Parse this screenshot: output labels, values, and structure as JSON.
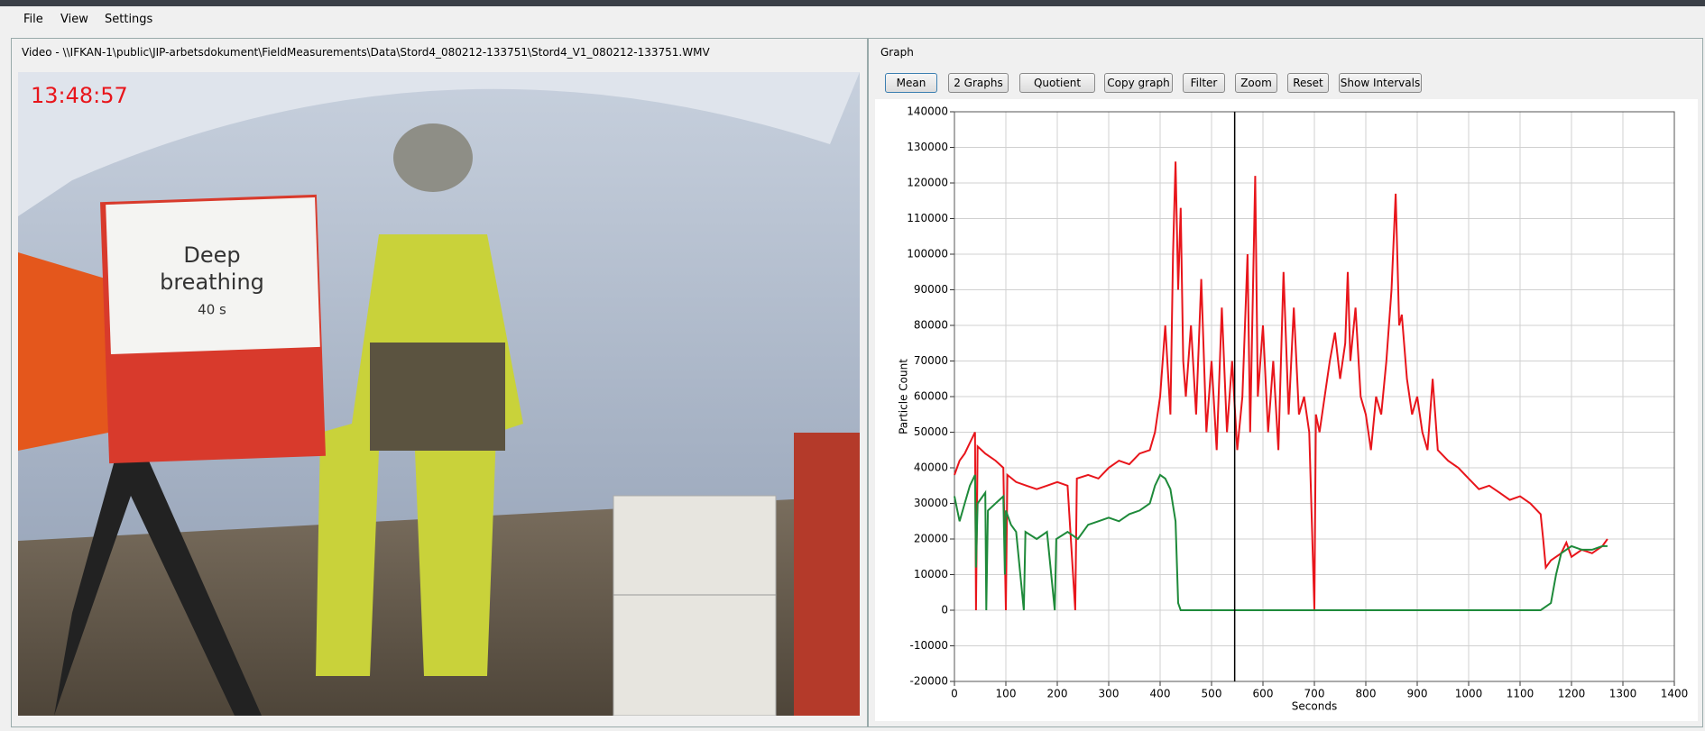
{
  "menu": {
    "items": [
      "File",
      "View",
      "Settings"
    ]
  },
  "video_panel": {
    "title": "Video - \\\\IFKAN-1\\public\\JIP-arbetsdokument\\FieldMeasurements\\Data\\Stord4_080212-133751\\Stord4_V1_080212-133751.WMV",
    "timestamp": "13:48:57",
    "sign": [
      "Deep",
      "breathing",
      "40 s"
    ]
  },
  "graph_panel": {
    "title": "Graph",
    "buttons": [
      "Mean",
      "2 Graphs",
      "Quotient",
      "Copy graph",
      "Filter",
      "Zoom",
      "Reset",
      "Show Intervals"
    ]
  },
  "chart_data": {
    "type": "line",
    "x_label": "Seconds",
    "y_label": "Particle Count",
    "xlim": [
      0,
      1400
    ],
    "ylim": [
      -20000,
      140000
    ],
    "xticks": [
      0,
      100,
      200,
      300,
      400,
      500,
      600,
      700,
      800,
      900,
      1000,
      1100,
      1200,
      1300,
      1400
    ],
    "yticks": [
      -20000,
      -10000,
      0,
      10000,
      20000,
      30000,
      40000,
      50000,
      60000,
      70000,
      80000,
      90000,
      100000,
      110000,
      120000,
      130000,
      140000
    ],
    "grid": true,
    "cursor_x": 545,
    "series": [
      {
        "color": "#e8151b",
        "x": [
          0,
          10,
          20,
          30,
          40,
          42,
          45,
          60,
          80,
          95,
          100,
          103,
          120,
          140,
          160,
          180,
          200,
          220,
          235,
          238,
          260,
          280,
          300,
          320,
          340,
          360,
          380,
          390,
          400,
          410,
          420,
          425,
          430,
          435,
          440,
          445,
          450,
          460,
          470,
          480,
          490,
          500,
          510,
          520,
          530,
          540,
          550,
          560,
          570,
          575,
          585,
          590,
          600,
          610,
          620,
          630,
          640,
          650,
          660,
          670,
          680,
          690,
          700,
          703,
          710,
          720,
          730,
          740,
          750,
          760,
          765,
          770,
          780,
          790,
          800,
          810,
          820,
          830,
          840,
          850,
          858,
          865,
          870,
          880,
          890,
          900,
          910,
          920,
          930,
          940,
          960,
          980,
          1000,
          1020,
          1040,
          1060,
          1080,
          1100,
          1120,
          1140,
          1145,
          1150,
          1160,
          1180,
          1190,
          1200,
          1220,
          1240,
          1260,
          1270
        ],
        "values": [
          38000,
          42000,
          44000,
          47000,
          50000,
          0,
          46000,
          44000,
          42000,
          40000,
          0,
          38000,
          36000,
          35000,
          34000,
          35000,
          36000,
          35000,
          0,
          37000,
          38000,
          37000,
          40000,
          42000,
          41000,
          44000,
          45000,
          50000,
          60000,
          80000,
          55000,
          100000,
          126000,
          90000,
          113000,
          70000,
          60000,
          80000,
          55000,
          93000,
          50000,
          70000,
          45000,
          85000,
          50000,
          70000,
          45000,
          60000,
          100000,
          50000,
          122000,
          60000,
          80000,
          50000,
          70000,
          45000,
          95000,
          55000,
          85000,
          55000,
          60000,
          50000,
          0,
          55000,
          50000,
          60000,
          70000,
          78000,
          65000,
          75000,
          95000,
          70000,
          85000,
          60000,
          55000,
          45000,
          60000,
          55000,
          70000,
          90000,
          117000,
          80000,
          83000,
          65000,
          55000,
          60000,
          50000,
          45000,
          65000,
          45000,
          42000,
          40000,
          37000,
          34000,
          35000,
          33000,
          31000,
          32000,
          30000,
          27000,
          20000,
          12000,
          14000,
          16000,
          19000,
          15000,
          17000,
          16000,
          18000,
          20000
        ]
      },
      {
        "color": "#1e8a3a",
        "x": [
          0,
          10,
          20,
          30,
          40,
          42,
          45,
          60,
          62,
          65,
          80,
          95,
          98,
          100,
          110,
          120,
          135,
          138,
          160,
          180,
          195,
          198,
          220,
          240,
          260,
          280,
          300,
          320,
          340,
          360,
          380,
          390,
          400,
          410,
          420,
          430,
          435,
          440,
          500,
          600,
          700,
          800,
          900,
          1000,
          1100,
          1140,
          1160,
          1170,
          1180,
          1200,
          1220,
          1240,
          1260,
          1270
        ],
        "values": [
          32000,
          25000,
          30000,
          35000,
          38000,
          12000,
          30000,
          33000,
          0,
          28000,
          30000,
          32000,
          10000,
          28000,
          24000,
          22000,
          0,
          22000,
          20000,
          22000,
          0,
          20000,
          22000,
          20000,
          24000,
          25000,
          26000,
          25000,
          27000,
          28000,
          30000,
          35000,
          38000,
          37000,
          34000,
          25000,
          2000,
          0,
          0,
          0,
          0,
          0,
          0,
          0,
          0,
          0,
          2000,
          10000,
          16000,
          18000,
          17000,
          17000,
          18000,
          18000
        ]
      }
    ]
  }
}
